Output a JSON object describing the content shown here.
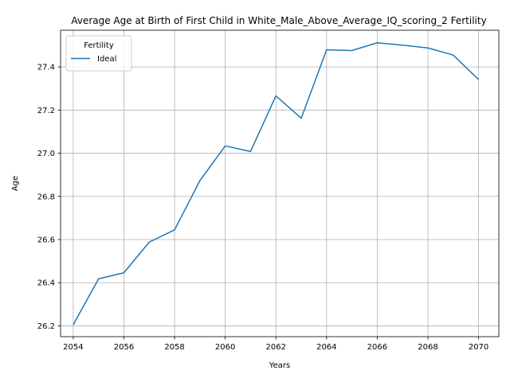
{
  "chart_data": {
    "type": "line",
    "title": "Average Age at Birth of First Child in White_Male_Above_Average_IQ_scoring_2 Fertility",
    "xlabel": "Years",
    "ylabel": "Age",
    "xlim": [
      2053.5,
      2070.8
    ],
    "ylim": [
      26.15,
      27.57
    ],
    "xticks": [
      2054,
      2056,
      2058,
      2060,
      2062,
      2064,
      2066,
      2068,
      2070
    ],
    "yticks": [
      26.2,
      26.4,
      26.6,
      26.8,
      27.0,
      27.2,
      27.4
    ],
    "ytick_labels": [
      "26.2",
      "26.4",
      "26.6",
      "26.8",
      "27.0",
      "27.2",
      "27.4"
    ],
    "grid": true,
    "legend": {
      "title": "Fertility",
      "placement": "upper-left"
    },
    "series": [
      {
        "name": "Ideal",
        "color": "#1f77b4",
        "x": [
          2054,
          2055,
          2056,
          2057,
          2058,
          2059,
          2060,
          2061,
          2062,
          2063,
          2064,
          2065,
          2066,
          2067,
          2068,
          2069,
          2070
        ],
        "y": [
          26.205,
          26.418,
          26.446,
          26.588,
          26.645,
          26.873,
          27.034,
          27.008,
          27.266,
          27.162,
          27.479,
          27.476,
          27.512,
          27.501,
          27.488,
          27.455,
          27.341
        ]
      }
    ]
  }
}
